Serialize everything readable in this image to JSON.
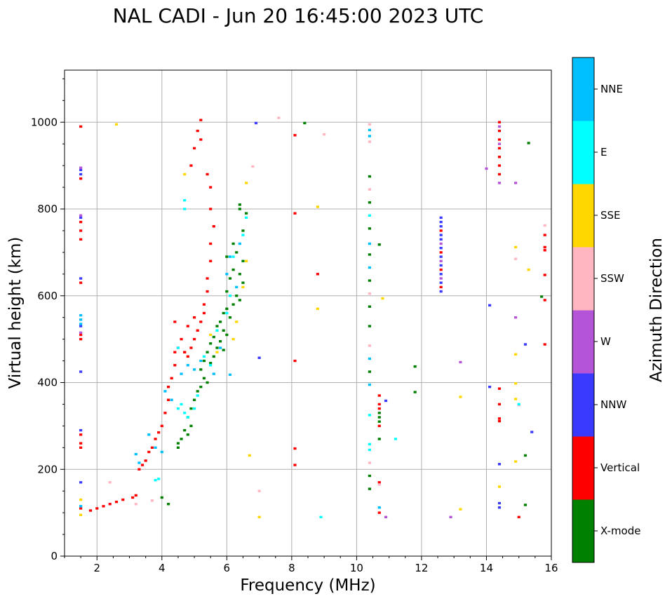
{
  "chart_data": {
    "type": "scatter",
    "title": "NAL CADI - Jun 20 16:45:00 2023 UTC",
    "xlabel": "Frequency (MHz)",
    "ylabel": "Virtual height (km)",
    "xlim": [
      1,
      16
    ],
    "ylim": [
      0,
      1120
    ],
    "xticks": [
      2,
      4,
      6,
      8,
      10,
      12,
      14,
      16
    ],
    "yticks": [
      0,
      200,
      400,
      600,
      800,
      1000
    ],
    "grid": true,
    "colorbar": {
      "label": "Azimuth Direction",
      "categories": [
        {
          "name": "X-mode",
          "color": "#008000"
        },
        {
          "name": "Vertical",
          "color": "#ff0000"
        },
        {
          "name": "NNW",
          "color": "#3a3aff"
        },
        {
          "name": "W",
          "color": "#b455d8"
        },
        {
          "name": "SSW",
          "color": "#ffb6c1"
        },
        {
          "name": "SSE",
          "color": "#ffd700"
        },
        {
          "name": "E",
          "color": "#00ffff"
        },
        {
          "name": "NNE",
          "color": "#00bfff"
        }
      ]
    },
    "series": [
      {
        "name": "X-mode",
        "points": [
          [
            6.4,
            810
          ],
          [
            6.4,
            800
          ],
          [
            6.6,
            790
          ],
          [
            6.5,
            750
          ],
          [
            6.2,
            720
          ],
          [
            6.3,
            700
          ],
          [
            6.0,
            690
          ],
          [
            6.5,
            680
          ],
          [
            6.2,
            660
          ],
          [
            6.4,
            650
          ],
          [
            6.1,
            640
          ],
          [
            6.5,
            630
          ],
          [
            6.0,
            610
          ],
          [
            6.3,
            600
          ],
          [
            6.4,
            590
          ],
          [
            6.2,
            580
          ],
          [
            6.0,
            570
          ],
          [
            5.9,
            560
          ],
          [
            6.1,
            550
          ],
          [
            5.8,
            540
          ],
          [
            5.7,
            530
          ],
          [
            5.9,
            520
          ],
          [
            6.0,
            510
          ],
          [
            5.6,
            505
          ],
          [
            5.8,
            495
          ],
          [
            5.5,
            490
          ],
          [
            5.7,
            480
          ],
          [
            5.9,
            475
          ],
          [
            5.4,
            470
          ],
          [
            5.6,
            460
          ],
          [
            5.3,
            450
          ],
          [
            5.5,
            445
          ],
          [
            5.2,
            430
          ],
          [
            5.3,
            410
          ],
          [
            5.4,
            400
          ],
          [
            5.2,
            390
          ],
          [
            5.1,
            380
          ],
          [
            5.0,
            360
          ],
          [
            4.9,
            340
          ],
          [
            4.8,
            320
          ],
          [
            4.9,
            300
          ],
          [
            4.7,
            290
          ],
          [
            4.8,
            280
          ],
          [
            4.6,
            270
          ],
          [
            4.5,
            260
          ],
          [
            4.5,
            250
          ],
          [
            4.0,
            135
          ],
          [
            4.2,
            120
          ],
          [
            10.4,
            875
          ],
          [
            10.4,
            815
          ],
          [
            10.4,
            755
          ],
          [
            10.4,
            695
          ],
          [
            10.4,
            635
          ],
          [
            10.4,
            575
          ],
          [
            10.4,
            530
          ],
          [
            10.4,
            425
          ],
          [
            10.4,
            185
          ],
          [
            10.4,
            155
          ],
          [
            10.7,
            718
          ],
          [
            10.7,
            330
          ],
          [
            10.7,
            320
          ],
          [
            10.7,
            310
          ],
          [
            10.7,
            270
          ],
          [
            11.8,
            437
          ],
          [
            11.8,
            378
          ],
          [
            15.3,
            952
          ],
          [
            15.7,
            598
          ],
          [
            15.2,
            232
          ],
          [
            15.2,
            118
          ],
          [
            8.4,
            998
          ]
        ]
      },
      {
        "name": "Vertical",
        "points": [
          [
            1.5,
            990
          ],
          [
            1.5,
            870
          ],
          [
            1.5,
            770
          ],
          [
            1.5,
            750
          ],
          [
            1.5,
            730
          ],
          [
            1.5,
            630
          ],
          [
            1.5,
            510
          ],
          [
            1.5,
            500
          ],
          [
            1.5,
            280
          ],
          [
            1.5,
            260
          ],
          [
            1.5,
            250
          ],
          [
            1.5,
            110
          ],
          [
            1.8,
            105
          ],
          [
            2.0,
            110
          ],
          [
            2.2,
            115
          ],
          [
            2.4,
            120
          ],
          [
            2.6,
            125
          ],
          [
            2.8,
            130
          ],
          [
            3.1,
            135
          ],
          [
            3.2,
            140
          ],
          [
            3.3,
            200
          ],
          [
            3.4,
            210
          ],
          [
            3.5,
            220
          ],
          [
            3.6,
            240
          ],
          [
            3.7,
            250
          ],
          [
            3.8,
            270
          ],
          [
            3.9,
            285
          ],
          [
            4.0,
            300
          ],
          [
            4.1,
            330
          ],
          [
            4.2,
            360
          ],
          [
            4.2,
            390
          ],
          [
            4.3,
            410
          ],
          [
            4.4,
            440
          ],
          [
            4.4,
            470
          ],
          [
            4.5,
            480
          ],
          [
            4.6,
            500
          ],
          [
            4.7,
            470
          ],
          [
            4.8,
            460
          ],
          [
            4.9,
            480
          ],
          [
            5.0,
            500
          ],
          [
            5.1,
            520
          ],
          [
            5.2,
            540
          ],
          [
            5.3,
            560
          ],
          [
            5.3,
            580
          ],
          [
            5.4,
            610
          ],
          [
            5.4,
            640
          ],
          [
            5.5,
            680
          ],
          [
            5.5,
            720
          ],
          [
            5.6,
            760
          ],
          [
            5.5,
            800
          ],
          [
            5.5,
            850
          ],
          [
            5.4,
            880
          ],
          [
            5.2,
            960
          ],
          [
            5.1,
            980
          ],
          [
            5.0,
            940
          ],
          [
            4.9,
            900
          ],
          [
            5.2,
            1005
          ],
          [
            4.7,
            470
          ],
          [
            4.4,
            540
          ],
          [
            4.8,
            530
          ],
          [
            5.0,
            550
          ],
          [
            8.1,
            970
          ],
          [
            8.1,
            790
          ],
          [
            8.1,
            450
          ],
          [
            8.1,
            248
          ],
          [
            8.1,
            210
          ],
          [
            8.8,
            650
          ],
          [
            10.7,
            370
          ],
          [
            10.7,
            350
          ],
          [
            10.7,
            340
          ],
          [
            10.7,
            300
          ],
          [
            10.7,
            170
          ],
          [
            10.7,
            100
          ],
          [
            14.4,
            1000
          ],
          [
            14.4,
            980
          ],
          [
            14.4,
            960
          ],
          [
            14.4,
            940
          ],
          [
            14.4,
            920
          ],
          [
            14.4,
            900
          ],
          [
            14.4,
            880
          ],
          [
            14.4,
            386
          ],
          [
            14.4,
            350
          ],
          [
            14.4,
            317
          ],
          [
            14.4,
            311
          ],
          [
            15.0,
            90
          ],
          [
            15.8,
            740
          ],
          [
            15.8,
            712
          ],
          [
            15.8,
            705
          ],
          [
            15.8,
            648
          ],
          [
            15.8,
            590
          ],
          [
            15.8,
            488
          ],
          [
            12.6,
            620
          ],
          [
            12.6,
            660
          ],
          [
            12.6,
            700
          ],
          [
            12.6,
            750
          ]
        ]
      },
      {
        "name": "NNW",
        "points": [
          [
            1.5,
            890
          ],
          [
            1.5,
            880
          ],
          [
            1.5,
            780
          ],
          [
            1.5,
            640
          ],
          [
            1.5,
            530
          ],
          [
            1.5,
            425
          ],
          [
            1.5,
            290
          ],
          [
            1.5,
            170
          ],
          [
            6.9,
            998
          ],
          [
            7.0,
            457
          ],
          [
            10.9,
            358
          ],
          [
            12.6,
            780
          ],
          [
            12.6,
            770
          ],
          [
            12.6,
            760
          ],
          [
            12.6,
            740
          ],
          [
            12.6,
            730
          ],
          [
            12.6,
            710
          ],
          [
            12.6,
            690
          ],
          [
            12.6,
            670
          ],
          [
            12.6,
            650
          ],
          [
            12.6,
            630
          ],
          [
            12.6,
            610
          ],
          [
            14.1,
            578
          ],
          [
            14.1,
            390
          ],
          [
            14.4,
            212
          ],
          [
            14.4,
            122
          ],
          [
            14.4,
            112
          ],
          [
            15.2,
            488
          ],
          [
            15.4,
            286
          ]
        ]
      },
      {
        "name": "W",
        "points": [
          [
            1.5,
            895
          ],
          [
            1.5,
            785
          ],
          [
            1.5,
            515
          ],
          [
            14.0,
            893
          ],
          [
            14.4,
            990
          ],
          [
            14.4,
            950
          ],
          [
            14.4,
            860
          ],
          [
            14.9,
            860
          ],
          [
            14.9,
            550
          ],
          [
            13.2,
            447
          ],
          [
            10.9,
            90
          ],
          [
            12.9,
            90
          ],
          [
            12.6,
            720
          ],
          [
            12.6,
            680
          ],
          [
            12.6,
            640
          ]
        ]
      },
      {
        "name": "SSW",
        "points": [
          [
            2.4,
            170
          ],
          [
            3.2,
            120
          ],
          [
            3.7,
            128
          ],
          [
            6.8,
            898
          ],
          [
            7.0,
            150
          ],
          [
            7.6,
            1010
          ],
          [
            9.0,
            972
          ],
          [
            10.4,
            995
          ],
          [
            10.4,
            955
          ],
          [
            10.4,
            845
          ],
          [
            10.4,
            605
          ],
          [
            10.4,
            485
          ],
          [
            10.4,
            215
          ],
          [
            10.7,
            165
          ],
          [
            15.8,
            762
          ],
          [
            14.9,
            685
          ],
          [
            15.0,
            348
          ]
        ]
      },
      {
        "name": "SSE",
        "points": [
          [
            1.5,
            130
          ],
          [
            1.5,
            95
          ],
          [
            2.6,
            995
          ],
          [
            4.7,
            880
          ],
          [
            6.6,
            860
          ],
          [
            6.6,
            680
          ],
          [
            6.5,
            620
          ],
          [
            6.3,
            540
          ],
          [
            6.2,
            500
          ],
          [
            5.7,
            470
          ],
          [
            5.5,
            510
          ],
          [
            6.7,
            232
          ],
          [
            7.0,
            90
          ],
          [
            8.8,
            805
          ],
          [
            8.8,
            570
          ],
          [
            10.8,
            594
          ],
          [
            13.2,
            367
          ],
          [
            13.2,
            108
          ],
          [
            14.4,
            160
          ],
          [
            14.9,
            712
          ],
          [
            14.9,
            465
          ],
          [
            14.9,
            398
          ],
          [
            14.9,
            362
          ],
          [
            14.9,
            218
          ],
          [
            15.3,
            660
          ]
        ]
      },
      {
        "name": "E",
        "points": [
          [
            1.5,
            115
          ],
          [
            3.8,
            175
          ],
          [
            3.9,
            178
          ],
          [
            4.5,
            340
          ],
          [
            4.6,
            350
          ],
          [
            4.7,
            330
          ],
          [
            4.8,
            320
          ],
          [
            5.0,
            340
          ],
          [
            5.1,
            370
          ],
          [
            5.5,
            440
          ],
          [
            5.7,
            520
          ],
          [
            6.0,
            560
          ],
          [
            6.1,
            600
          ],
          [
            6.5,
            740
          ],
          [
            4.7,
            820
          ],
          [
            4.7,
            800
          ],
          [
            6.6,
            780
          ],
          [
            6.2,
            690
          ],
          [
            8.9,
            90
          ],
          [
            10.4,
            785
          ],
          [
            10.4,
            325
          ],
          [
            10.4,
            258
          ],
          [
            10.4,
            245
          ],
          [
            11.2,
            270
          ],
          [
            15.0,
            350
          ],
          [
            4.5,
            480
          ],
          [
            5.3,
            460
          ]
        ]
      },
      {
        "name": "NNE",
        "points": [
          [
            1.5,
            555
          ],
          [
            1.5,
            545
          ],
          [
            1.5,
            535
          ],
          [
            1.5,
            115
          ],
          [
            3.2,
            235
          ],
          [
            3.3,
            215
          ],
          [
            3.6,
            280
          ],
          [
            3.8,
            250
          ],
          [
            4.0,
            240
          ],
          [
            4.1,
            380
          ],
          [
            4.3,
            360
          ],
          [
            4.6,
            420
          ],
          [
            4.8,
            440
          ],
          [
            5.0,
            430
          ],
          [
            5.2,
            450
          ],
          [
            5.6,
            420
          ],
          [
            5.8,
            480
          ],
          [
            6.1,
            418
          ],
          [
            6.0,
            650
          ],
          [
            6.3,
            620
          ],
          [
            6.1,
            690
          ],
          [
            6.4,
            720
          ],
          [
            10.4,
            982
          ],
          [
            10.4,
            968
          ],
          [
            10.4,
            395
          ],
          [
            10.4,
            455
          ],
          [
            10.4,
            720
          ],
          [
            10.4,
            665
          ],
          [
            10.7,
            112
          ]
        ]
      }
    ]
  }
}
